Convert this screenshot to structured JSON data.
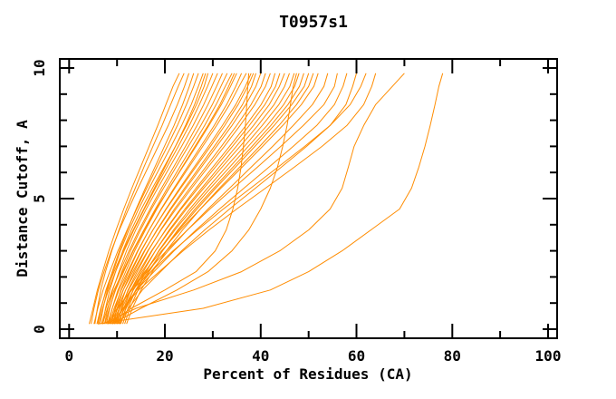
{
  "window": {
    "background_color": "#ffffff",
    "text_color": "#000000"
  },
  "chart_data": {
    "type": "line",
    "title": "T0957s1",
    "xlabel": "Percent of Residues (CA)",
    "ylabel": "Distance Cutoff, A",
    "xlim": [
      0,
      100
    ],
    "ylim": [
      0,
      10
    ],
    "grid": false,
    "legend": "none",
    "frame_color": "#000000",
    "series_color": "#FF8C00",
    "x_major_ticks": [
      0,
      20,
      40,
      60,
      80,
      100
    ],
    "x_minor_ticks": [
      10,
      30,
      50,
      70,
      90
    ],
    "x_tick_labels": [
      "0",
      "20",
      "40",
      "60",
      "80",
      "100"
    ],
    "y_major_ticks": [
      0,
      5,
      10
    ],
    "y_minor_ticks": [
      1,
      2,
      3,
      4,
      6,
      7,
      8,
      9
    ],
    "y_tick_labels": [
      "0",
      "5",
      "10"
    ],
    "y_levels": [
      0.2,
      0.8,
      1.5,
      2.2,
      3.0,
      3.8,
      4.6,
      5.4,
      6.2,
      7.0,
      7.8,
      8.6,
      9.3,
      9.8
    ],
    "curves": [
      [
        4.2,
        5.0,
        5.9,
        7.0,
        8.3,
        9.8,
        11.4,
        13.1,
        14.9,
        16.7,
        18.5,
        20.2,
        21.7,
        23.0
      ],
      [
        5.4,
        5.9,
        6.6,
        7.6,
        8.9,
        10.4,
        12.0,
        13.8,
        15.6,
        17.5,
        19.4,
        21.2,
        22.8,
        24.0
      ],
      [
        4.6,
        5.2,
        6.1,
        7.3,
        8.8,
        10.5,
        12.4,
        14.4,
        16.5,
        18.6,
        20.7,
        22.6,
        24.1,
        25.0
      ],
      [
        6.0,
        6.7,
        7.7,
        9.0,
        10.5,
        12.2,
        14.0,
        15.9,
        17.9,
        19.9,
        21.9,
        23.7,
        25.1,
        26.0
      ],
      [
        5.2,
        6.0,
        7.1,
        8.5,
        10.2,
        12.1,
        14.1,
        16.2,
        18.3,
        20.5,
        22.6,
        24.5,
        26.0,
        27.0
      ],
      [
        6.5,
        7.1,
        8.0,
        9.2,
        10.7,
        12.5,
        14.5,
        16.7,
        19.0,
        21.3,
        23.5,
        25.5,
        27.0,
        28.0
      ],
      [
        5.8,
        6.6,
        7.8,
        9.4,
        11.3,
        13.4,
        15.6,
        17.8,
        20.0,
        22.2,
        24.3,
        26.2,
        27.6,
        28.5
      ],
      [
        7.0,
        7.6,
        8.5,
        9.7,
        11.2,
        13.0,
        15.1,
        17.4,
        19.8,
        22.2,
        24.5,
        26.6,
        28.2,
        29.0
      ],
      [
        6.2,
        7.0,
        8.2,
        9.7,
        11.5,
        13.5,
        15.7,
        18.0,
        20.4,
        22.8,
        25.1,
        27.2,
        28.9,
        30.0
      ],
      [
        7.4,
        8.1,
        9.1,
        10.4,
        12.0,
        13.9,
        16.1,
        18.5,
        21.0,
        23.5,
        25.9,
        28.1,
        29.8,
        31.0
      ],
      [
        6.8,
        7.7,
        9.0,
        10.6,
        12.5,
        14.6,
        16.9,
        19.3,
        21.8,
        24.3,
        26.7,
        29.0,
        30.8,
        32.0
      ],
      [
        7.8,
        8.5,
        9.6,
        11.0,
        12.8,
        14.9,
        17.2,
        19.7,
        22.3,
        24.9,
        27.5,
        29.9,
        31.7,
        33.0
      ],
      [
        7.0,
        8.0,
        9.4,
        11.2,
        13.3,
        15.6,
        18.0,
        20.5,
        23.1,
        25.7,
        28.3,
        30.7,
        32.6,
        34.0
      ],
      [
        8.2,
        9.0,
        10.2,
        11.8,
        13.7,
        15.9,
        18.3,
        20.9,
        23.6,
        26.3,
        29.0,
        31.5,
        33.3,
        34.5
      ],
      [
        7.5,
        8.4,
        9.7,
        11.4,
        13.4,
        15.7,
        18.2,
        20.9,
        23.7,
        26.5,
        29.2,
        31.8,
        33.7,
        35.0
      ],
      [
        8.8,
        9.6,
        10.8,
        12.4,
        14.4,
        16.7,
        19.2,
        21.9,
        24.7,
        27.5,
        30.3,
        32.9,
        34.8,
        36.0
      ],
      [
        8.0,
        9.0,
        10.4,
        12.2,
        14.3,
        16.7,
        19.3,
        22.1,
        25.0,
        27.9,
        30.8,
        33.5,
        35.5,
        37.0
      ],
      [
        9.2,
        10.0,
        11.3,
        13.0,
        15.1,
        17.5,
        20.2,
        23.1,
        26.1,
        29.1,
        32.0,
        34.8,
        36.8,
        38.0
      ],
      [
        8.4,
        9.4,
        10.9,
        12.8,
        15.0,
        17.5,
        20.3,
        23.3,
        26.4,
        29.5,
        32.5,
        35.3,
        37.3,
        38.5
      ],
      [
        9.6,
        10.5,
        11.8,
        13.6,
        15.8,
        18.3,
        21.1,
        24.1,
        27.2,
        30.3,
        33.4,
        36.2,
        38.1,
        39.0
      ],
      [
        8.6,
        9.7,
        11.3,
        13.3,
        15.7,
        18.4,
        21.3,
        24.4,
        27.6,
        30.8,
        34.0,
        36.9,
        39.0,
        40.0
      ],
      [
        10.0,
        10.9,
        12.3,
        14.2,
        16.5,
        19.1,
        22.0,
        25.2,
        28.5,
        31.8,
        35.0,
        38.0,
        40.1,
        41.0
      ],
      [
        9.0,
        10.1,
        11.8,
        13.9,
        16.4,
        19.2,
        22.3,
        25.6,
        29.0,
        32.4,
        35.7,
        38.8,
        41.0,
        42.0
      ],
      [
        10.4,
        11.4,
        12.9,
        14.9,
        17.3,
        20.1,
        23.2,
        26.5,
        30.0,
        33.5,
        36.9,
        40.1,
        42.2,
        43.0
      ],
      [
        9.4,
        10.6,
        12.4,
        14.6,
        17.2,
        20.2,
        23.4,
        26.9,
        30.5,
        34.1,
        37.6,
        40.9,
        43.1,
        44.0
      ],
      [
        10.8,
        11.8,
        13.4,
        15.5,
        18.0,
        20.9,
        24.2,
        27.7,
        31.3,
        34.9,
        38.5,
        41.8,
        43.9,
        45.0
      ],
      [
        9.8,
        11.0,
        12.9,
        15.2,
        18.0,
        21.1,
        24.5,
        28.1,
        31.9,
        35.7,
        39.4,
        42.8,
        45.0,
        46.0
      ],
      [
        11.2,
        12.3,
        13.9,
        16.1,
        18.7,
        21.8,
        25.2,
        28.9,
        32.7,
        36.6,
        40.3,
        43.8,
        46.1,
        47.0
      ],
      [
        10.2,
        11.5,
        13.4,
        15.9,
        18.8,
        22.1,
        25.7,
        29.5,
        33.5,
        37.4,
        41.3,
        44.8,
        47.1,
        48.0
      ],
      [
        11.6,
        12.7,
        14.4,
        16.7,
        19.5,
        22.7,
        26.3,
        30.2,
        34.2,
        38.2,
        42.1,
        45.7,
        48.1,
        49.0
      ],
      [
        10.6,
        11.9,
        13.9,
        16.5,
        19.5,
        22.9,
        26.7,
        30.6,
        34.7,
        38.8,
        42.8,
        46.5,
        49.1,
        50.0
      ],
      [
        12.0,
        13.2,
        15.0,
        17.4,
        20.3,
        23.7,
        27.4,
        31.4,
        35.6,
        39.8,
        43.8,
        47.5,
        50.0,
        51.0
      ],
      [
        9.0,
        10.5,
        12.8,
        15.8,
        19.3,
        23.2,
        27.4,
        31.7,
        36.1,
        40.4,
        44.6,
        48.5,
        51.1,
        52.0
      ],
      [
        10.0,
        11.6,
        14.0,
        17.1,
        20.7,
        24.7,
        29.0,
        33.5,
        38.0,
        42.5,
        46.8,
        50.8,
        53.2,
        54.0
      ],
      [
        8.5,
        10.2,
        12.9,
        16.3,
        20.3,
        24.7,
        29.4,
        34.3,
        39.3,
        44.2,
        48.9,
        53.2,
        55.4,
        56.0
      ],
      [
        9.5,
        11.3,
        14.1,
        17.7,
        21.9,
        26.5,
        31.4,
        36.5,
        41.7,
        46.8,
        51.7,
        55.4,
        57.2,
        58.0
      ],
      [
        10.5,
        12.4,
        15.3,
        19.1,
        23.5,
        28.3,
        33.5,
        38.9,
        44.3,
        49.6,
        54.5,
        57.8,
        59.2,
        60.0
      ],
      [
        8.0,
        10.0,
        13.1,
        17.1,
        21.7,
        26.8,
        32.2,
        37.9,
        43.6,
        49.2,
        54.5,
        58.7,
        60.9,
        62.0
      ],
      [
        9.0,
        11.2,
        14.5,
        18.8,
        23.8,
        29.2,
        35.0,
        41.0,
        47.0,
        52.8,
        58.0,
        61.5,
        63.2,
        64.0
      ],
      [
        8.0,
        13.0,
        20.0,
        26.5,
        30.5,
        32.8,
        34.2,
        35.2,
        35.9,
        36.4,
        36.8,
        37.1,
        37.3,
        37.5
      ],
      [
        9.0,
        15.0,
        22.5,
        29.0,
        34.0,
        37.5,
        40.0,
        42.0,
        43.5,
        44.6,
        45.5,
        46.2,
        46.8,
        47.5
      ],
      [
        7.0,
        14.0,
        26.0,
        36.0,
        44.0,
        50.0,
        54.5,
        57.0,
        58.3,
        59.5,
        61.5,
        64.0,
        67.5,
        70.0
      ],
      [
        6.0,
        28.0,
        42.0,
        50.0,
        57.0,
        63.0,
        69.0,
        71.5,
        73.0,
        74.3,
        75.4,
        76.4,
        77.2,
        78.0
      ]
    ]
  }
}
